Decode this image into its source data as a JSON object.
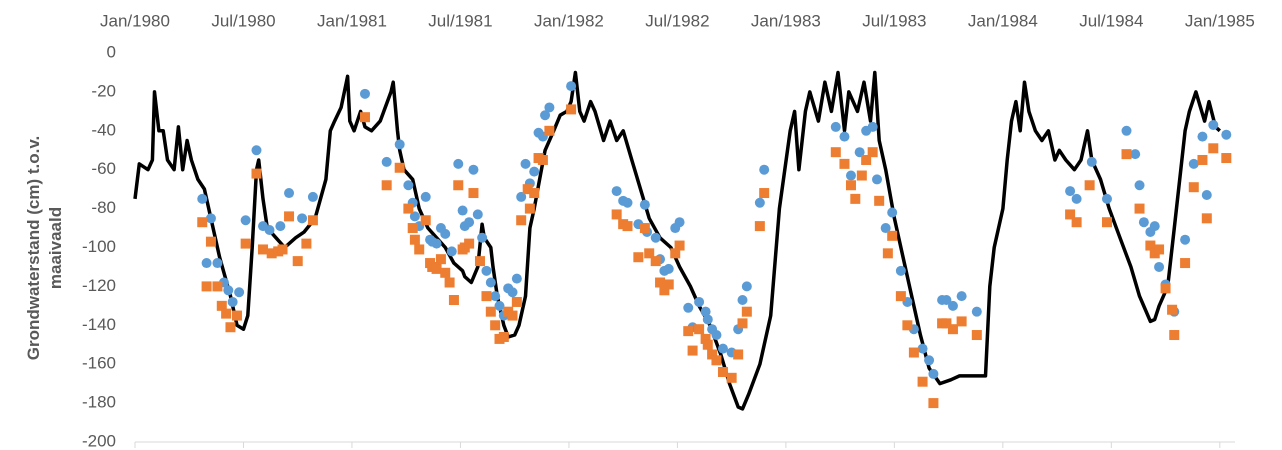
{
  "chart_data": {
    "type": "line",
    "y_label": "Grondwaterstand (cm) t.o.v. maaivaald",
    "xlim": [
      1980,
      1985.07
    ],
    "xticks": [
      {
        "value": 1980,
        "label": "Jan/1980"
      },
      {
        "value": 1980.5,
        "label": "Jul/1980"
      },
      {
        "value": 1981,
        "label": "Jan/1981"
      },
      {
        "value": 1981.5,
        "label": "Jul/1981"
      },
      {
        "value": 1982,
        "label": "Jan/1982"
      },
      {
        "value": 1982.5,
        "label": "Jul/1982"
      },
      {
        "value": 1983,
        "label": "Jan/1983"
      },
      {
        "value": 1983.5,
        "label": "Jul/1983"
      },
      {
        "value": 1984,
        "label": "Jan/1984"
      },
      {
        "value": 1984.5,
        "label": "Jul/1984"
      },
      {
        "value": 1985,
        "label": "Jan/1985"
      }
    ],
    "ylim": [
      -200,
      0
    ],
    "yticks": [
      0,
      -20,
      -40,
      -60,
      -80,
      -100,
      -120,
      -140,
      -160,
      -180,
      -200
    ],
    "grid": false,
    "series": [
      {
        "type": "line",
        "color": "#000000",
        "x": [
          1980.0,
          1980.02,
          1980.06,
          1980.08,
          1980.09,
          1980.11,
          1980.13,
          1980.15,
          1980.18,
          1980.2,
          1980.22,
          1980.24,
          1980.26,
          1980.29,
          1980.32,
          1980.35,
          1980.39,
          1980.44,
          1980.47,
          1980.5,
          1980.52,
          1980.54,
          1980.56,
          1980.57,
          1980.59,
          1980.61,
          1980.65,
          1980.69,
          1980.74,
          1980.78,
          1980.83,
          1980.88,
          1980.9,
          1980.92,
          1980.95,
          1980.98,
          1980.99,
          1981.01,
          1981.04,
          1981.06,
          1981.09,
          1981.13,
          1981.18,
          1981.19,
          1981.21,
          1981.22,
          1981.24,
          1981.28,
          1981.31,
          1981.35,
          1981.39,
          1981.43,
          1981.47,
          1981.51,
          1981.52,
          1981.55,
          1981.58,
          1981.6,
          1981.61,
          1981.64,
          1981.65,
          1981.67,
          1981.7,
          1981.72,
          1981.75,
          1981.77,
          1981.8,
          1981.82,
          1981.84,
          1981.87,
          1981.89,
          1981.93,
          1981.96,
          1981.99,
          1982.01,
          1982.03,
          1982.05,
          1982.07,
          1982.1,
          1982.12,
          1982.16,
          1982.19,
          1982.22,
          1982.25,
          1982.29,
          1982.33,
          1982.37,
          1982.42,
          1982.47,
          1982.51,
          1982.56,
          1982.6,
          1982.65,
          1982.7,
          1982.74,
          1982.78,
          1982.8,
          1982.83,
          1982.88,
          1982.93,
          1982.97,
          1983.02,
          1983.04,
          1983.06,
          1983.09,
          1983.11,
          1983.15,
          1983.18,
          1983.21,
          1983.24,
          1983.27,
          1983.29,
          1983.33,
          1983.36,
          1983.39,
          1983.41,
          1983.43,
          1983.46,
          1983.5,
          1983.55,
          1983.58,
          1983.62,
          1983.66,
          1983.71,
          1983.76,
          1983.8,
          1983.85,
          1983.92,
          1983.94,
          1983.96,
          1984.0,
          1984.02,
          1984.04,
          1984.06,
          1984.08,
          1984.1,
          1984.12,
          1984.15,
          1984.18,
          1984.21,
          1984.24,
          1984.26,
          1984.29,
          1984.33,
          1984.36,
          1984.39,
          1984.41,
          1984.45,
          1984.49,
          1984.54,
          1984.59,
          1984.63,
          1984.68,
          1984.7,
          1984.72,
          1984.76,
          1984.79,
          1984.82,
          1984.84,
          1984.86,
          1984.89,
          1984.93,
          1984.95,
          1984.98,
          1985.0
        ],
        "values": [
          -75,
          -57,
          -60,
          -55,
          -20,
          -40,
          -40,
          -55,
          -60,
          -38,
          -60,
          -45,
          -55,
          -65,
          -70,
          -85,
          -105,
          -125,
          -140,
          -142,
          -135,
          -100,
          -60,
          -55,
          -75,
          -90,
          -95,
          -100,
          -95,
          -92,
          -85,
          -65,
          -40,
          -35,
          -28,
          -12,
          -35,
          -40,
          -30,
          -38,
          -40,
          -35,
          -20,
          -15,
          -40,
          -50,
          -60,
          -65,
          -80,
          -90,
          -95,
          -100,
          -108,
          -112,
          -115,
          -118,
          -110,
          -88,
          -95,
          -100,
          -110,
          -125,
          -140,
          -146,
          -145,
          -140,
          -125,
          -90,
          -80,
          -62,
          -50,
          -40,
          -32,
          -30,
          -25,
          -10,
          -30,
          -35,
          -25,
          -30,
          -45,
          -35,
          -45,
          -40,
          -55,
          -70,
          -85,
          -95,
          -100,
          -110,
          -120,
          -130,
          -140,
          -155,
          -170,
          -182,
          -183,
          -175,
          -160,
          -135,
          -80,
          -40,
          -30,
          -60,
          -30,
          -20,
          -35,
          -15,
          -30,
          -10,
          -40,
          -20,
          -30,
          -15,
          -35,
          -10,
          -45,
          -60,
          -85,
          -110,
          -125,
          -145,
          -162,
          -170,
          -168,
          -166,
          -166,
          -166,
          -120,
          -100,
          -80,
          -55,
          -35,
          -25,
          -40,
          -15,
          -30,
          -40,
          -45,
          -40,
          -55,
          -50,
          -55,
          -60,
          -55,
          -40,
          -55,
          -65,
          -80,
          -95,
          -110,
          -125,
          -138,
          -137,
          -130,
          -120,
          -90,
          -60,
          -40,
          -30,
          -20,
          -35,
          -25,
          -38,
          -40
        ]
      },
      {
        "type": "scatter",
        "marker": "circle",
        "color": "#5b9bd5",
        "x": [
          1980.31,
          1980.33,
          1980.35,
          1980.38,
          1980.41,
          1980.43,
          1980.45,
          1980.48,
          1980.51,
          1980.56,
          1980.59,
          1980.62,
          1980.67,
          1980.71,
          1980.77,
          1980.82,
          1981.06,
          1981.16,
          1981.22,
          1981.26,
          1981.28,
          1981.29,
          1981.31,
          1981.34,
          1981.36,
          1981.37,
          1981.39,
          1981.41,
          1981.43,
          1981.46,
          1981.49,
          1981.51,
          1981.52,
          1981.54,
          1981.56,
          1981.58,
          1981.6,
          1981.62,
          1981.64,
          1981.66,
          1981.68,
          1981.7,
          1981.72,
          1981.74,
          1981.76,
          1981.78,
          1981.8,
          1981.82,
          1981.84,
          1981.86,
          1981.88,
          1981.89,
          1981.91,
          1982.01,
          1982.22,
          1982.25,
          1982.27,
          1982.32,
          1982.35,
          1982.36,
          1982.4,
          1982.42,
          1982.44,
          1982.46,
          1982.49,
          1982.51,
          1982.55,
          1982.57,
          1982.6,
          1982.63,
          1982.64,
          1982.66,
          1982.68,
          1982.71,
          1982.75,
          1982.78,
          1982.8,
          1982.82,
          1982.88,
          1982.9,
          1983.23,
          1983.27,
          1983.3,
          1983.34,
          1983.37,
          1983.4,
          1983.42,
          1983.46,
          1983.49,
          1983.53,
          1983.56,
          1983.59,
          1983.63,
          1983.66,
          1983.68,
          1983.72,
          1983.74,
          1983.77,
          1983.81,
          1983.88,
          1984.31,
          1984.34,
          1984.41,
          1984.48,
          1984.57,
          1984.61,
          1984.63,
          1984.65,
          1984.68,
          1984.7,
          1984.72,
          1984.75,
          1984.79,
          1984.84,
          1984.88,
          1984.92,
          1984.94,
          1984.97,
          1985.03
        ],
        "values": [
          -75,
          -108,
          -85,
          -108,
          -118,
          -122,
          -128,
          -123,
          -86,
          -50,
          -89,
          -91,
          -89,
          -72,
          -85,
          -74,
          -21,
          -56,
          -47,
          -68,
          -77,
          -84,
          -89,
          -74,
          -96,
          -97,
          -98,
          -90,
          -93,
          -102,
          -57,
          -81,
          -89,
          -87,
          -60,
          -83,
          -95,
          -112,
          -118,
          -125,
          -130,
          -135,
          -121,
          -123,
          -116,
          -74,
          -57,
          -67,
          -61,
          -41,
          -43,
          -32,
          -28,
          -17,
          -71,
          -76,
          -77,
          -88,
          -78,
          -92,
          -95,
          -106,
          -112,
          -111,
          -90,
          -87,
          -131,
          -141,
          -128,
          -133,
          -137,
          -142,
          -145,
          -152,
          -154,
          -142,
          -127,
          -120,
          -77,
          -60,
          -38,
          -43,
          -63,
          -51,
          -40,
          -38,
          -65,
          -90,
          -82,
          -112,
          -128,
          -142,
          -152,
          -158,
          -165,
          -127,
          -127,
          -130,
          -125,
          -133,
          -71,
          -75,
          -56,
          -75,
          -40,
          -52,
          -68,
          -87,
          -92,
          -89,
          -110,
          -119,
          -133,
          -96,
          -57,
          -43,
          -73,
          -37,
          -42
        ]
      },
      {
        "type": "scatter",
        "marker": "square",
        "color": "#ed7d31",
        "x": [
          1980.31,
          1980.33,
          1980.35,
          1980.38,
          1980.4,
          1980.42,
          1980.44,
          1980.47,
          1980.51,
          1980.56,
          1980.59,
          1980.63,
          1980.66,
          1980.68,
          1980.71,
          1980.75,
          1980.79,
          1980.82,
          1981.06,
          1981.16,
          1981.22,
          1981.26,
          1981.28,
          1981.29,
          1981.31,
          1981.34,
          1981.36,
          1981.37,
          1981.39,
          1981.41,
          1981.43,
          1981.45,
          1981.47,
          1981.49,
          1981.51,
          1981.52,
          1981.54,
          1981.56,
          1981.59,
          1981.62,
          1981.64,
          1981.66,
          1981.68,
          1981.7,
          1981.72,
          1981.74,
          1981.76,
          1981.78,
          1981.81,
          1981.82,
          1981.84,
          1981.86,
          1981.88,
          1981.91,
          1982.01,
          1982.22,
          1982.25,
          1982.27,
          1982.32,
          1982.35,
          1982.37,
          1982.4,
          1982.42,
          1982.44,
          1982.46,
          1982.49,
          1982.51,
          1982.55,
          1982.57,
          1982.6,
          1982.63,
          1982.64,
          1982.66,
          1982.68,
          1982.71,
          1982.75,
          1982.78,
          1982.8,
          1982.82,
          1982.88,
          1982.9,
          1983.23,
          1983.27,
          1983.3,
          1983.32,
          1983.35,
          1983.37,
          1983.4,
          1983.43,
          1983.47,
          1983.49,
          1983.53,
          1983.56,
          1983.59,
          1983.63,
          1983.68,
          1983.72,
          1983.74,
          1983.77,
          1983.81,
          1983.88,
          1984.31,
          1984.34,
          1984.4,
          1984.48,
          1984.57,
          1984.63,
          1984.68,
          1984.7,
          1984.72,
          1984.75,
          1984.78,
          1984.79,
          1984.84,
          1984.88,
          1984.92,
          1984.94,
          1984.97,
          1985.03
        ],
        "values": [
          -87,
          -120,
          -97,
          -120,
          -130,
          -134,
          -141,
          -135,
          -98,
          -62,
          -101,
          -103,
          -102,
          -101,
          -84,
          -107,
          -98,
          -86,
          -33,
          -68,
          -59,
          -80,
          -90,
          -96,
          -101,
          -86,
          -108,
          -110,
          -111,
          -106,
          -113,
          -118,
          -127,
          -68,
          -101,
          -100,
          -98,
          -72,
          -107,
          -125,
          -133,
          -140,
          -147,
          -146,
          -133,
          -135,
          -128,
          -86,
          -70,
          -80,
          -72,
          -54,
          -55,
          -40,
          -29,
          -83,
          -88,
          -89,
          -105,
          -90,
          -103,
          -107,
          -118,
          -122,
          -119,
          -103,
          -99,
          -143,
          -153,
          -142,
          -147,
          -150,
          -155,
          -158,
          -164,
          -167,
          -155,
          -139,
          -133,
          -89,
          -72,
          -51,
          -57,
          -68,
          -75,
          -63,
          -55,
          -51,
          -76,
          -103,
          -94,
          -125,
          -140,
          -154,
          -169,
          -180,
          -139,
          -139,
          -142,
          -138,
          -145,
          -83,
          -87,
          -68,
          -87,
          -52,
          -80,
          -99,
          -103,
          -101,
          -121,
          -132,
          -145,
          -108,
          -69,
          -55,
          -85,
          -49,
          -54
        ]
      }
    ]
  }
}
